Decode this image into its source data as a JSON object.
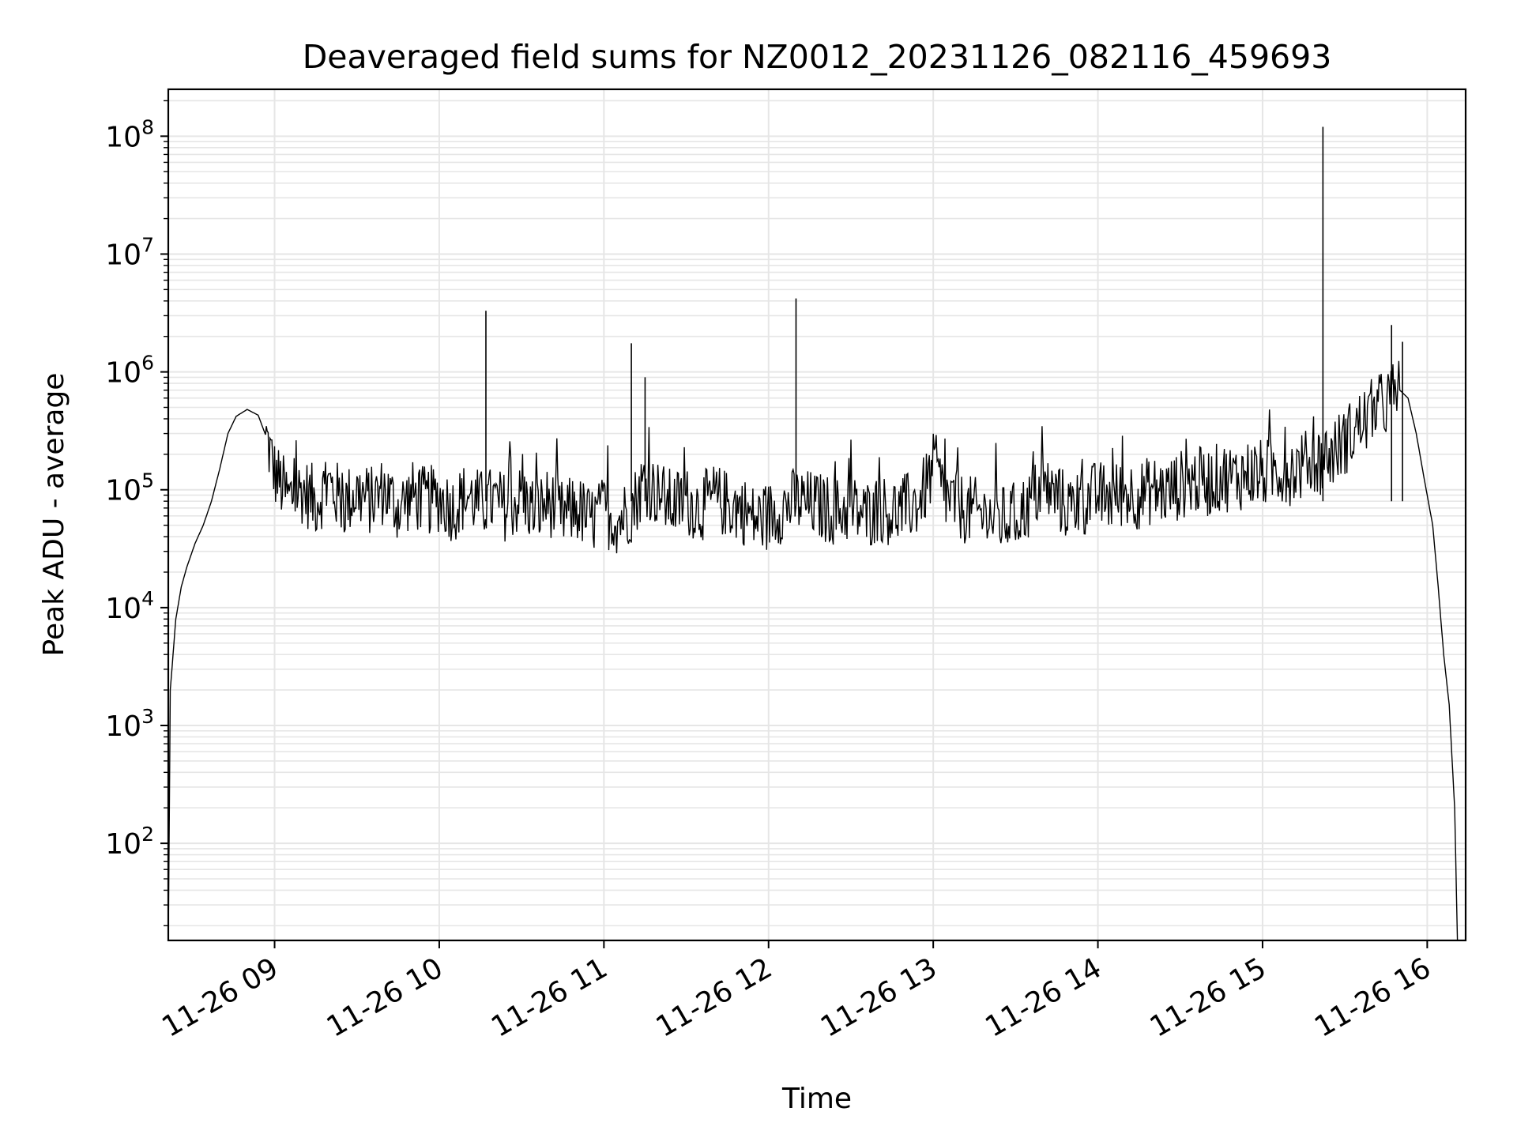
{
  "chart_data": {
    "type": "line",
    "title": "Deaveraged field sums for NZ0012_20231126_082116_459693",
    "xlabel": "Time",
    "ylabel": "Peak ADU - average",
    "yscale": "log",
    "ylim": [
      15,
      250000000
    ],
    "xlim": [
      "2023-11-26 08:21:16",
      "2023-11-26 16:14:00"
    ],
    "grid": true,
    "line_color": "#000000",
    "grid_color": "#e6e6e6",
    "x_ticks": [
      {
        "time": "2023-11-26 09:00",
        "label": "11-26 09"
      },
      {
        "time": "2023-11-26 10:00",
        "label": "11-26 10"
      },
      {
        "time": "2023-11-26 11:00",
        "label": "11-26 11"
      },
      {
        "time": "2023-11-26 12:00",
        "label": "11-26 12"
      },
      {
        "time": "2023-11-26 13:00",
        "label": "11-26 13"
      },
      {
        "time": "2023-11-26 14:00",
        "label": "11-26 14"
      },
      {
        "time": "2023-11-26 15:00",
        "label": "11-26 15"
      },
      {
        "time": "2023-11-26 16:00",
        "label": "11-26 16"
      }
    ],
    "y_ticks": [
      {
        "value": 100,
        "base": "10",
        "exp": "2"
      },
      {
        "value": 1000,
        "base": "10",
        "exp": "3"
      },
      {
        "value": 10000,
        "base": "10",
        "exp": "4"
      },
      {
        "value": 100000,
        "base": "10",
        "exp": "5"
      },
      {
        "value": 1000000,
        "base": "10",
        "exp": "6"
      },
      {
        "value": 10000000,
        "base": "10",
        "exp": "7"
      },
      {
        "value": 100000000,
        "base": "10",
        "exp": "8"
      }
    ],
    "series": [
      {
        "points": [
          [
            "2023-11-26 08:21:16",
            15
          ],
          [
            "2023-11-26 08:22",
            2000
          ],
          [
            "2023-11-26 08:24",
            8000
          ],
          [
            "2023-11-26 08:26",
            15000
          ],
          [
            "2023-11-26 08:28",
            22000
          ],
          [
            "2023-11-26 08:31",
            35000
          ],
          [
            "2023-11-26 08:34",
            50000
          ],
          [
            "2023-11-26 08:37",
            80000
          ],
          [
            "2023-11-26 08:40",
            150000
          ],
          [
            "2023-11-26 08:43",
            300000
          ],
          [
            "2023-11-26 08:46",
            420000
          ],
          [
            "2023-11-26 08:50",
            480000
          ],
          [
            "2023-11-26 08:54",
            430000
          ],
          [
            "2023-11-26 08:57",
            280000
          ],
          [
            "2023-11-26 09:00",
            140000
          ],
          [
            "2023-11-26 09:05",
            85000
          ],
          [
            "2023-11-26 09:10",
            100000
          ],
          [
            "2023-11-26 09:15",
            80000
          ],
          [
            "2023-11-26 09:20",
            110000
          ],
          [
            "2023-11-26 09:25",
            75000
          ],
          [
            "2023-11-26 09:30",
            95000
          ],
          [
            "2023-11-26 09:35",
            80000
          ],
          [
            "2023-11-26 09:40",
            100000
          ],
          [
            "2023-11-26 09:45",
            70000
          ],
          [
            "2023-11-26 09:50",
            90000
          ],
          [
            "2023-11-26 09:55",
            80000
          ],
          [
            "2023-11-26 10:00",
            85000
          ],
          [
            "2023-11-26 10:05",
            70000
          ],
          [
            "2023-11-26 10:10",
            90000
          ],
          [
            "2023-11-26 10:15",
            75000
          ],
          [
            "2023-11-26 10:20",
            80000
          ],
          [
            "2023-11-26 10:25",
            70000
          ],
          [
            "2023-11-26 10:30",
            85000
          ],
          [
            "2023-11-26 10:35",
            65000
          ],
          [
            "2023-11-26 10:40",
            80000
          ],
          [
            "2023-11-26 10:45",
            60000
          ],
          [
            "2023-11-26 10:50",
            70000
          ],
          [
            "2023-11-26 10:55",
            55000
          ],
          [
            "2023-11-26 11:00",
            65000
          ],
          [
            "2023-11-26 11:05",
            55000
          ],
          [
            "2023-11-26 11:10",
            70000
          ],
          [
            "2023-11-26 11:15",
            120000
          ],
          [
            "2023-11-26 11:20",
            90000
          ],
          [
            "2023-11-26 11:25",
            75000
          ],
          [
            "2023-11-26 11:30",
            80000
          ],
          [
            "2023-11-26 11:35",
            70000
          ],
          [
            "2023-11-26 11:40",
            85000
          ],
          [
            "2023-11-26 11:45",
            75000
          ],
          [
            "2023-11-26 11:50",
            70000
          ],
          [
            "2023-11-26 11:55",
            55000
          ],
          [
            "2023-11-26 12:00",
            60000
          ],
          [
            "2023-11-26 12:05",
            70000
          ],
          [
            "2023-11-26 12:10",
            80000
          ],
          [
            "2023-11-26 12:15",
            75000
          ],
          [
            "2023-11-26 12:20",
            70000
          ],
          [
            "2023-11-26 12:25",
            65000
          ],
          [
            "2023-11-26 12:30",
            70000
          ],
          [
            "2023-11-26 12:35",
            60000
          ],
          [
            "2023-11-26 12:40",
            70000
          ],
          [
            "2023-11-26 12:45",
            65000
          ],
          [
            "2023-11-26 12:50",
            70000
          ],
          [
            "2023-11-26 12:55",
            80000
          ],
          [
            "2023-11-26 13:00",
            150000
          ],
          [
            "2023-11-26 13:05",
            85000
          ],
          [
            "2023-11-26 13:10",
            70000
          ],
          [
            "2023-11-26 13:15",
            65000
          ],
          [
            "2023-11-26 13:20",
            60000
          ],
          [
            "2023-11-26 13:25",
            55000
          ],
          [
            "2023-11-26 13:30",
            60000
          ],
          [
            "2023-11-26 13:35",
            75000
          ],
          [
            "2023-11-26 13:40",
            110000
          ],
          [
            "2023-11-26 13:45",
            85000
          ],
          [
            "2023-11-26 13:50",
            70000
          ],
          [
            "2023-11-26 13:55",
            80000
          ],
          [
            "2023-11-26 14:00",
            90000
          ],
          [
            "2023-11-26 14:05",
            85000
          ],
          [
            "2023-11-26 14:10",
            95000
          ],
          [
            "2023-11-26 14:15",
            90000
          ],
          [
            "2023-11-26 14:20",
            100000
          ],
          [
            "2023-11-26 14:25",
            95000
          ],
          [
            "2023-11-26 14:30",
            110000
          ],
          [
            "2023-11-26 14:35",
            120000
          ],
          [
            "2023-11-26 14:40",
            115000
          ],
          [
            "2023-11-26 14:45",
            130000
          ],
          [
            "2023-11-26 14:50",
            125000
          ],
          [
            "2023-11-26 14:55",
            140000
          ],
          [
            "2023-11-26 15:00",
            135000
          ],
          [
            "2023-11-26 15:05",
            150000
          ],
          [
            "2023-11-26 15:10",
            145000
          ],
          [
            "2023-11-26 15:15",
            160000
          ],
          [
            "2023-11-26 15:20",
            175000
          ],
          [
            "2023-11-26 15:25",
            200000
          ],
          [
            "2023-11-26 15:30",
            260000
          ],
          [
            "2023-11-26 15:35",
            350000
          ],
          [
            "2023-11-26 15:40",
            450000
          ],
          [
            "2023-11-26 15:45",
            550000
          ],
          [
            "2023-11-26 15:50",
            700000
          ],
          [
            "2023-11-26 15:53",
            600000
          ],
          [
            "2023-11-26 15:56",
            300000
          ],
          [
            "2023-11-26 15:59",
            120000
          ],
          [
            "2023-11-26 16:02",
            50000
          ],
          [
            "2023-11-26 16:04",
            15000
          ],
          [
            "2023-11-26 16:06",
            4000
          ],
          [
            "2023-11-26 16:08",
            1500
          ],
          [
            "2023-11-26 16:10",
            200
          ],
          [
            "2023-11-26 16:11",
            15
          ]
        ],
        "spikes": [
          {
            "time": "2023-11-26 10:17",
            "value": 3300000
          },
          {
            "time": "2023-11-26 11:10",
            "value": 1750000
          },
          {
            "time": "2023-11-26 11:15",
            "value": 900000
          },
          {
            "time": "2023-11-26 12:10",
            "value": 4200000
          },
          {
            "time": "2023-11-26 15:22",
            "value": 120000000
          },
          {
            "time": "2023-11-26 15:47",
            "value": 2500000
          },
          {
            "time": "2023-11-26 15:51",
            "value": 1800000
          }
        ]
      }
    ]
  }
}
